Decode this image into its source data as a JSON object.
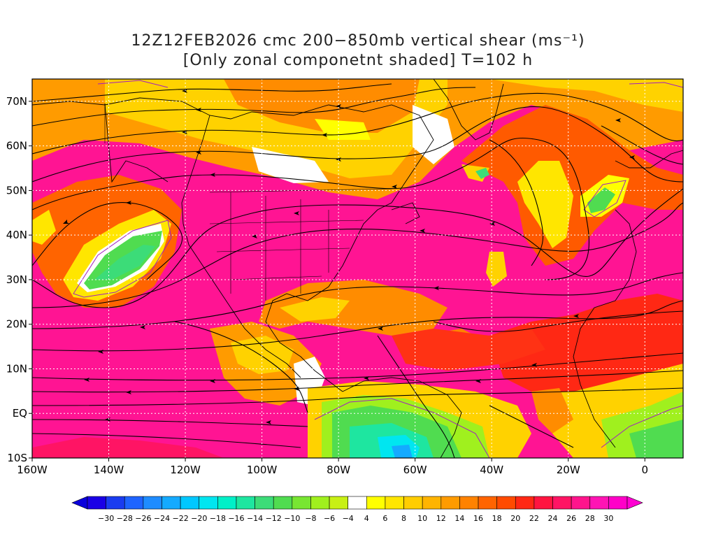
{
  "title": {
    "line1": "12Z12FEB2026 cmc 200−850mb vertical shear (ms⁻¹)",
    "line2": "[Only zonal componetnt shaded] T=102 h"
  },
  "axes": {
    "lat_labels": [
      "70N",
      "60N",
      "50N",
      "40N",
      "30N",
      "20N",
      "10N",
      "EQ",
      "10S"
    ],
    "lon_labels": [
      "160W",
      "140W",
      "120W",
      "100W",
      "80W",
      "60W",
      "40W",
      "20W",
      "0"
    ],
    "lat_values": [
      70,
      60,
      50,
      40,
      30,
      20,
      10,
      0,
      -10
    ],
    "lon_values": [
      -160,
      -140,
      -120,
      -100,
      -80,
      -60,
      -40,
      -20,
      0
    ],
    "lat_range": [
      -10,
      75
    ],
    "lon_range": [
      -160,
      10
    ],
    "grid": "dotted-white"
  },
  "colorbar": {
    "labels": [
      "−30",
      "−28",
      "−26",
      "−24",
      "−22",
      "−20",
      "−18",
      "−16",
      "−14",
      "−12",
      "−10",
      "−8",
      "−6",
      "−4",
      "4",
      "6",
      "8",
      "10",
      "12",
      "14",
      "16",
      "18",
      "20",
      "22",
      "24",
      "26",
      "28",
      "30"
    ],
    "colors": [
      "#1a00e6",
      "#1a3cf0",
      "#1e64ff",
      "#1e8cff",
      "#14aaff",
      "#00c8ff",
      "#00e6f0",
      "#00f0c8",
      "#1ee6a0",
      "#3cdc78",
      "#50dc50",
      "#78e632",
      "#a0f01e",
      "#c8f014",
      "#ffffff",
      "#ffff00",
      "#ffe600",
      "#ffcd00",
      "#ffb400",
      "#ff9b00",
      "#ff8200",
      "#ff6400",
      "#ff4b00",
      "#ff2814",
      "#ff1440",
      "#ff1464",
      "#ff148c",
      "#ff14b4",
      "#ff00c8"
    ],
    "under_color": "#0a00dc",
    "over_color": "#ff00d2"
  }
}
